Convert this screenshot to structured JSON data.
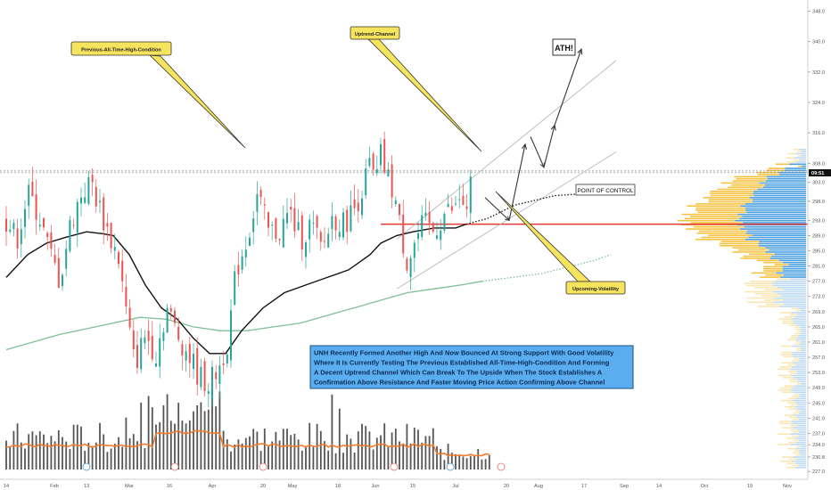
{
  "chart_data": {
    "type": "candlestick",
    "title": "",
    "xlabel": "",
    "ylabel": "",
    "ylim": [
      227.5,
      350
    ],
    "grid": false,
    "legend": "none",
    "y_ticks": [
      "227.0",
      "230.8",
      "234.0",
      "237.0",
      "241.0",
      "245.0",
      "249.0",
      "253.0",
      "257.0",
      "261.0",
      "265.0",
      "269.0",
      "273.0",
      "277.0",
      "281.0",
      "285.0",
      "289.0",
      "293.0",
      "298.0",
      "303.0",
      "308.0",
      "316.0",
      "324.0",
      "332.0",
      "340.0",
      "348.0"
    ],
    "x_ticks": [
      {
        "label": "14",
        "day": 0
      },
      {
        "label": "Feb",
        "day": 18
      },
      {
        "label": "13",
        "day": 30
      },
      {
        "label": "Mar",
        "day": 46
      },
      {
        "label": "16",
        "day": 61
      },
      {
        "label": "Apr",
        "day": 77
      },
      {
        "label": "20",
        "day": 96
      },
      {
        "label": "May",
        "day": 107
      },
      {
        "label": "18",
        "day": 124
      },
      {
        "label": "Jun",
        "day": 138
      },
      {
        "label": "15",
        "day": 152
      },
      {
        "label": "Jul",
        "day": 168
      },
      {
        "label": "20",
        "day": 187
      },
      {
        "label": "Aug",
        "day": 199
      },
      {
        "label": "17",
        "day": 216
      },
      {
        "label": "Sep",
        "day": 231
      },
      {
        "label": "14",
        "day": 244
      },
      {
        "label": "Oct",
        "day": 261
      },
      {
        "label": "19",
        "day": 278
      },
      {
        "label": "Nov",
        "day": 292
      }
    ],
    "price_label": "305.5",
    "price_label_text": "09:51",
    "series_close_anchors": [
      [
        0,
        293
      ],
      [
        4,
        288
      ],
      [
        8,
        300
      ],
      [
        12,
        295
      ],
      [
        16,
        285
      ],
      [
        20,
        277
      ],
      [
        24,
        292
      ],
      [
        28,
        300
      ],
      [
        32,
        303
      ],
      [
        34,
        298
      ],
      [
        38,
        290
      ],
      [
        42,
        283
      ],
      [
        45,
        268
      ],
      [
        48,
        255
      ],
      [
        52,
        263
      ],
      [
        56,
        258
      ],
      [
        60,
        270
      ],
      [
        64,
        263
      ],
      [
        68,
        258
      ],
      [
        72,
        252
      ],
      [
        76,
        250
      ],
      [
        80,
        255
      ],
      [
        83,
        262
      ],
      [
        86,
        280
      ],
      [
        90,
        288
      ],
      [
        94,
        300
      ],
      [
        98,
        290
      ],
      [
        102,
        290
      ],
      [
        106,
        295
      ],
      [
        110,
        288
      ],
      [
        114,
        292
      ],
      [
        118,
        285
      ],
      [
        122,
        294
      ],
      [
        126,
        292
      ],
      [
        130,
        296
      ],
      [
        134,
        303
      ],
      [
        136,
        308
      ],
      [
        138,
        302
      ],
      [
        140,
        310
      ],
      [
        142,
        305
      ],
      [
        145,
        300
      ],
      [
        148,
        288
      ],
      [
        150,
        282
      ],
      [
        152,
        286
      ],
      [
        156,
        292
      ],
      [
        160,
        290
      ],
      [
        164,
        295
      ],
      [
        168,
        296
      ],
      [
        170,
        300
      ],
      [
        172,
        293
      ],
      [
        174,
        304
      ],
      [
        175,
        295
      ]
    ],
    "ma_black": [
      [
        0,
        278
      ],
      [
        8,
        284
      ],
      [
        15,
        287
      ],
      [
        22,
        288.5
      ],
      [
        30,
        290
      ],
      [
        36,
        289.5
      ],
      [
        40,
        289
      ],
      [
        46,
        284
      ],
      [
        52,
        276
      ],
      [
        58,
        270
      ],
      [
        64,
        267
      ],
      [
        70,
        262
      ],
      [
        76,
        258
      ],
      [
        82,
        258
      ],
      [
        88,
        264
      ],
      [
        96,
        270
      ],
      [
        104,
        274
      ],
      [
        112,
        276
      ],
      [
        120,
        278
      ],
      [
        128,
        280
      ],
      [
        136,
        284
      ],
      [
        140,
        287
      ],
      [
        146,
        289
      ],
      [
        152,
        290
      ],
      [
        160,
        291
      ],
      [
        168,
        291
      ],
      [
        172,
        292
      ]
    ],
    "ma_green": [
      [
        0,
        259
      ],
      [
        20,
        263
      ],
      [
        40,
        266
      ],
      [
        50,
        267.5
      ],
      [
        60,
        267
      ],
      [
        70,
        265
      ],
      [
        80,
        264
      ],
      [
        90,
        264
      ],
      [
        100,
        265
      ],
      [
        110,
        266
      ],
      [
        120,
        268
      ],
      [
        130,
        270
      ],
      [
        140,
        272
      ],
      [
        150,
        274
      ],
      [
        160,
        275
      ],
      [
        170,
        276
      ],
      [
        178,
        277
      ]
    ],
    "ma_green_projection": [
      [
        178,
        277
      ],
      [
        200,
        279
      ],
      [
        220,
        282.5
      ],
      [
        226,
        284
      ]
    ],
    "ma_black_projection": [
      [
        172,
        292
      ],
      [
        180,
        293.5
      ],
      [
        190,
        297
      ],
      [
        205,
        299.5
      ],
      [
        226,
        300.5
      ]
    ],
    "resistance_level": 306,
    "poc_level": 292,
    "channel": {
      "lower": [
        [
          146,
          275
        ],
        [
          228,
          311
        ]
      ],
      "upper": [
        [
          146,
          288
        ],
        [
          228,
          335
        ]
      ]
    },
    "projection_arrows": [
      [
        [
          179,
          299
        ],
        [
          188,
          293
        ],
        [
          194,
          313
        ]
      ],
      [
        [
          196,
          315
        ],
        [
          201,
          307
        ],
        [
          205,
          318
        ]
      ],
      [
        [
          205,
          318
        ],
        [
          215,
          338
        ]
      ]
    ],
    "volume_profile_note": "horizontal volume-by-price histogram on right side"
  },
  "annotations": {
    "prev_ath_label": "Previous-All-Time-High-Condition",
    "uptrend_label": "Uptrend-Channel",
    "volatility_label": "Upcoming-Volatility",
    "ath_label": "ATH!",
    "poc_label": "POINT OF CONTROL",
    "description_lines": [
      "UNH Recently Formed Another High And Now Bounced At Strong Support With Good Volatility",
      "Where It Is Currently Testing The Previous Established All-Time-High-Condition And Forming",
      "A Decent Uptrend Channel Which Can Break To The Upside When The Stock Establishes A",
      "Confirmation Above Resistance And Faster Moving Price Action Confirming Above Channel"
    ]
  },
  "colors": {
    "up": "#26a69a",
    "down": "#ef5350",
    "volume": "#555555",
    "vol_ma": "#f57c2b",
    "ma_black": "#111111",
    "ma_green": "#7fbf98",
    "resistance": "#888888",
    "poc": "#e53935",
    "profile_blue": "#4a9fe0",
    "profile_yellow": "#f5c342",
    "profile_light_blue": "#bcdaf5",
    "profile_light_yellow": "#fbe7b3",
    "note_bg": "#5aaef0",
    "note_border": "#1a4f8a",
    "callout_bg": "#f6e35e"
  }
}
